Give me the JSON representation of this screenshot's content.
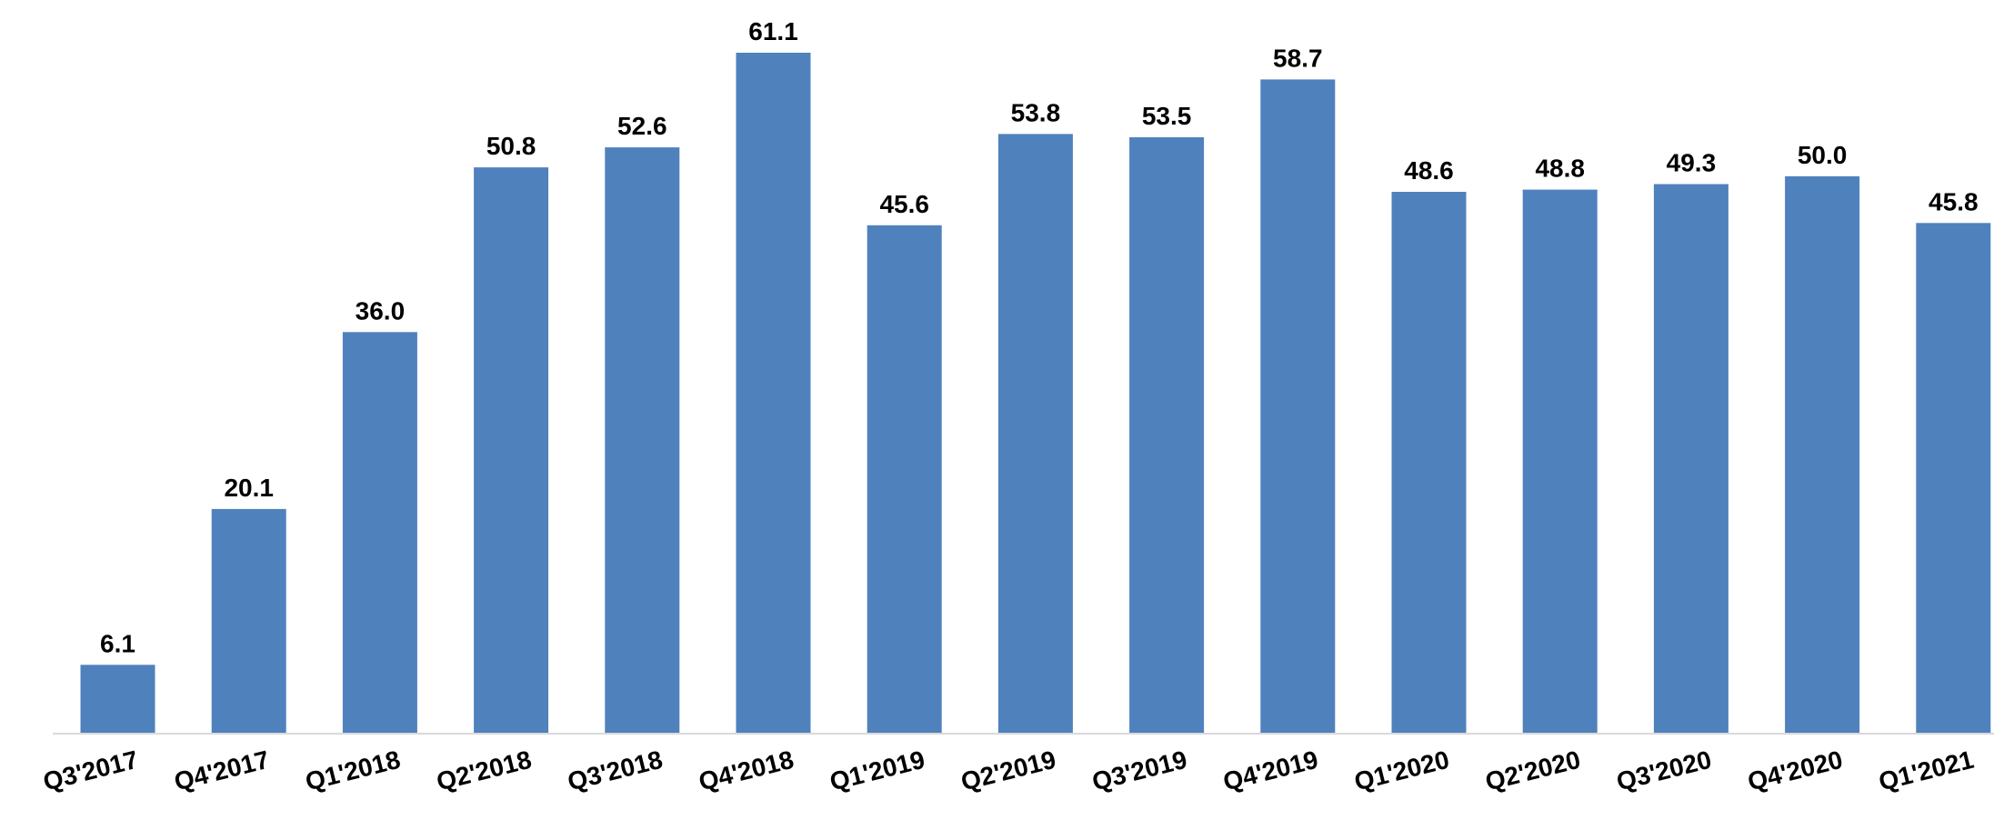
{
  "chart_data": {
    "type": "bar",
    "categories": [
      "Q3'2017",
      "Q4'2017",
      "Q1'2018",
      "Q2'2018",
      "Q3'2018",
      "Q4'2018",
      "Q1'2019",
      "Q2'2019",
      "Q3'2019",
      "Q4'2019",
      "Q1'2020",
      "Q2'2020",
      "Q3'2020",
      "Q4'2020",
      "Q1'2021"
    ],
    "values": [
      6.1,
      20.1,
      36.0,
      50.8,
      52.6,
      61.1,
      45.6,
      53.8,
      53.5,
      58.7,
      48.6,
      48.8,
      49.3,
      50.0,
      45.8
    ],
    "value_labels": [
      "6.1",
      "20.1",
      "36.0",
      "50.8",
      "52.6",
      "61.1",
      "45.6",
      "53.8",
      "53.5",
      "58.7",
      "48.6",
      "48.8",
      "49.3",
      "50.0",
      "45.8"
    ],
    "title": "",
    "xlabel": "",
    "ylabel": "",
    "ylim": [
      0,
      61.1
    ],
    "grid": false,
    "legend": "none",
    "bar_color": "#4f81bd"
  }
}
